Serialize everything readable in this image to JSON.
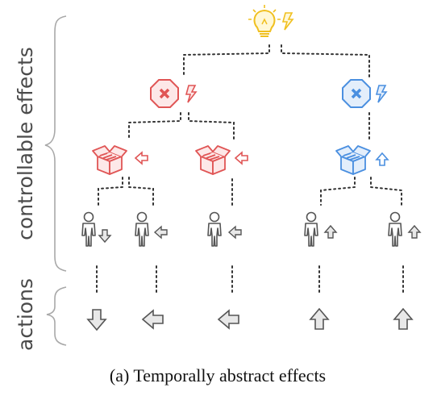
{
  "labels": {
    "controllable_effects": "controllable effects",
    "actions": "actions",
    "caption": "(a) Temporally abstract effects"
  },
  "colors": {
    "red": "#e05555",
    "blue": "#4a8fe0",
    "yellow": "#f0c020",
    "gray_stroke": "#555555",
    "arrow_fill": "#e8e8e8"
  },
  "nodes": {
    "root": {
      "icon": "lightbulb-icon",
      "secondary": "lightning-icon"
    },
    "effects_l1": [
      {
        "name": "stop-effect-red",
        "icon": "stop-x-icon",
        "color": "red"
      },
      {
        "name": "stop-effect-blue",
        "icon": "stop-x-icon",
        "color": "blue"
      }
    ],
    "effects_l2": [
      {
        "name": "box-effect-red-1",
        "icon": "box-icon",
        "arrow": "left",
        "color": "red"
      },
      {
        "name": "box-effect-red-2",
        "icon": "box-icon",
        "arrow": "left",
        "color": "red"
      },
      {
        "name": "box-effect-blue",
        "icon": "box-icon",
        "arrow": "up",
        "color": "blue"
      }
    ],
    "agents": [
      {
        "name": "agent-1",
        "arrow": "down"
      },
      {
        "name": "agent-2",
        "arrow": "left"
      },
      {
        "name": "agent-3",
        "arrow": "left"
      },
      {
        "name": "agent-4",
        "arrow": "up"
      },
      {
        "name": "agent-5",
        "arrow": "up"
      }
    ],
    "actions": [
      {
        "name": "action-down",
        "arrow": "down"
      },
      {
        "name": "action-left-1",
        "arrow": "left"
      },
      {
        "name": "action-left-2",
        "arrow": "left"
      },
      {
        "name": "action-up-1",
        "arrow": "up"
      },
      {
        "name": "action-up-2",
        "arrow": "up"
      }
    ]
  }
}
